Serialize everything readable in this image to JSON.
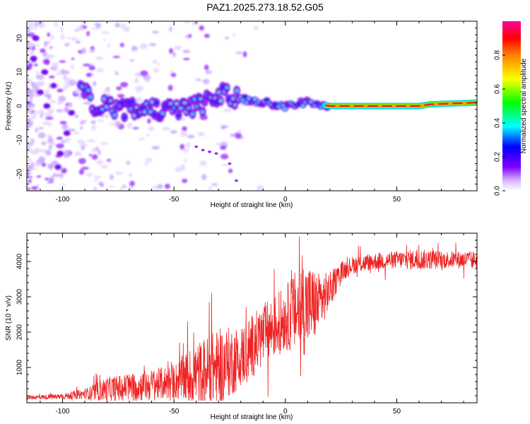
{
  "title": "PAZ1.2025.273.18.52.G05",
  "chart_data": [
    {
      "type": "heatmap",
      "xlabel": "Height of straight line (km)",
      "ylabel": "Frequency (Hz)",
      "xlim": [
        -116,
        86
      ],
      "ylim": [
        -25,
        25
      ],
      "xticks": [
        -100,
        -50,
        0,
        50
      ],
      "yticks": [
        -20,
        -10,
        0,
        10,
        20
      ],
      "colorbar": {
        "label": "Normalized spectral amplitude",
        "range": [
          0,
          1
        ],
        "ticks": [
          0.0,
          0.2,
          0.4,
          0.6,
          0.8
        ],
        "tick_labels": [
          "0.0",
          "0.2",
          "0.4",
          "0.6",
          "0.8"
        ],
        "colormap": [
          "#ffffff",
          "#b080ff",
          "#8000ff",
          "#0000ff",
          "#00ffff",
          "#00ff00",
          "#ffff00",
          "#ff8000",
          "#ff0000",
          "#ff00a0"
        ]
      },
      "ridge_line": [
        {
          "x": -90,
          "y": 4
        },
        {
          "x": -85,
          "y": 0
        },
        {
          "x": -75,
          "y": -1
        },
        {
          "x": -60,
          "y": -1
        },
        {
          "x": -45,
          "y": -1
        },
        {
          "x": -35,
          "y": 1
        },
        {
          "x": -28,
          "y": 4
        },
        {
          "x": -20,
          "y": 2
        },
        {
          "x": -10,
          "y": 1
        },
        {
          "x": 0,
          "y": 0
        },
        {
          "x": 10,
          "y": 1
        },
        {
          "x": 20,
          "y": 0
        },
        {
          "x": 60,
          "y": 0
        },
        {
          "x": 65,
          "y": 0.5
        },
        {
          "x": 86,
          "y": 1
        }
      ]
    },
    {
      "type": "line",
      "xlabel": "Height of straight line (km)",
      "ylabel": "SNR (10 * v/v)",
      "xlim": [
        -116,
        86
      ],
      "ylim": [
        0,
        4800
      ],
      "xticks": [
        -100,
        -50,
        0,
        50
      ],
      "yticks": [
        1000,
        2000,
        3000,
        4000
      ],
      "series": [
        {
          "name": "SNR",
          "color": "#ff0000",
          "envelope": [
            {
              "x": -116,
              "mean": 150,
              "spread": 60
            },
            {
              "x": -100,
              "mean": 180,
              "spread": 80
            },
            {
              "x": -90,
              "mean": 250,
              "spread": 150
            },
            {
              "x": -80,
              "mean": 380,
              "spread": 350
            },
            {
              "x": -70,
              "mean": 450,
              "spread": 400
            },
            {
              "x": -60,
              "mean": 500,
              "spread": 450
            },
            {
              "x": -50,
              "mean": 600,
              "spread": 500
            },
            {
              "x": -40,
              "mean": 800,
              "spread": 900
            },
            {
              "x": -30,
              "mean": 1000,
              "spread": 1100
            },
            {
              "x": -20,
              "mean": 1300,
              "spread": 900
            },
            {
              "x": -10,
              "mean": 1900,
              "spread": 900
            },
            {
              "x": 0,
              "mean": 2400,
              "spread": 900
            },
            {
              "x": 8,
              "mean": 2700,
              "spread": 1400
            },
            {
              "x": 15,
              "mean": 2800,
              "spread": 900
            },
            {
              "x": 20,
              "mean": 3200,
              "spread": 500
            },
            {
              "x": 25,
              "mean": 3700,
              "spread": 300
            },
            {
              "x": 30,
              "mean": 3900,
              "spread": 250
            },
            {
              "x": 40,
              "mean": 4000,
              "spread": 250
            },
            {
              "x": 50,
              "mean": 4050,
              "spread": 250
            },
            {
              "x": 60,
              "mean": 4050,
              "spread": 300
            },
            {
              "x": 70,
              "mean": 4050,
              "spread": 250
            },
            {
              "x": 86,
              "mean": 4050,
              "spread": 250
            }
          ]
        }
      ]
    }
  ]
}
